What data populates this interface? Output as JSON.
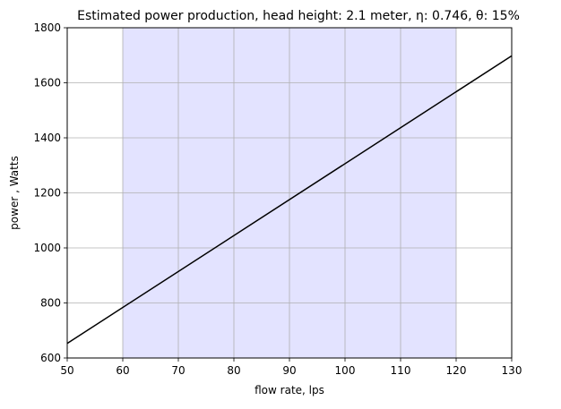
{
  "chart_data": {
    "type": "line",
    "title": "Estimated power production, head height: 2.1 meter, η: 0.746, θ: 15%",
    "xlabel": "flow rate, lps",
    "ylabel": "power , Watts",
    "xlim": [
      50,
      130
    ],
    "ylim": [
      600,
      1800
    ],
    "xticks": [
      50,
      60,
      70,
      80,
      90,
      100,
      110,
      120,
      130
    ],
    "yticks": [
      600,
      800,
      1000,
      1200,
      1400,
      1600,
      1800
    ],
    "grid": true,
    "shaded_region": {
      "x_start": 60,
      "x_end": 120,
      "color": "#e3e3ff"
    },
    "series": [
      {
        "color": "#000000",
        "points": [
          {
            "x": 50,
            "y": 653
          },
          {
            "x": 130,
            "y": 1698
          }
        ]
      }
    ]
  }
}
